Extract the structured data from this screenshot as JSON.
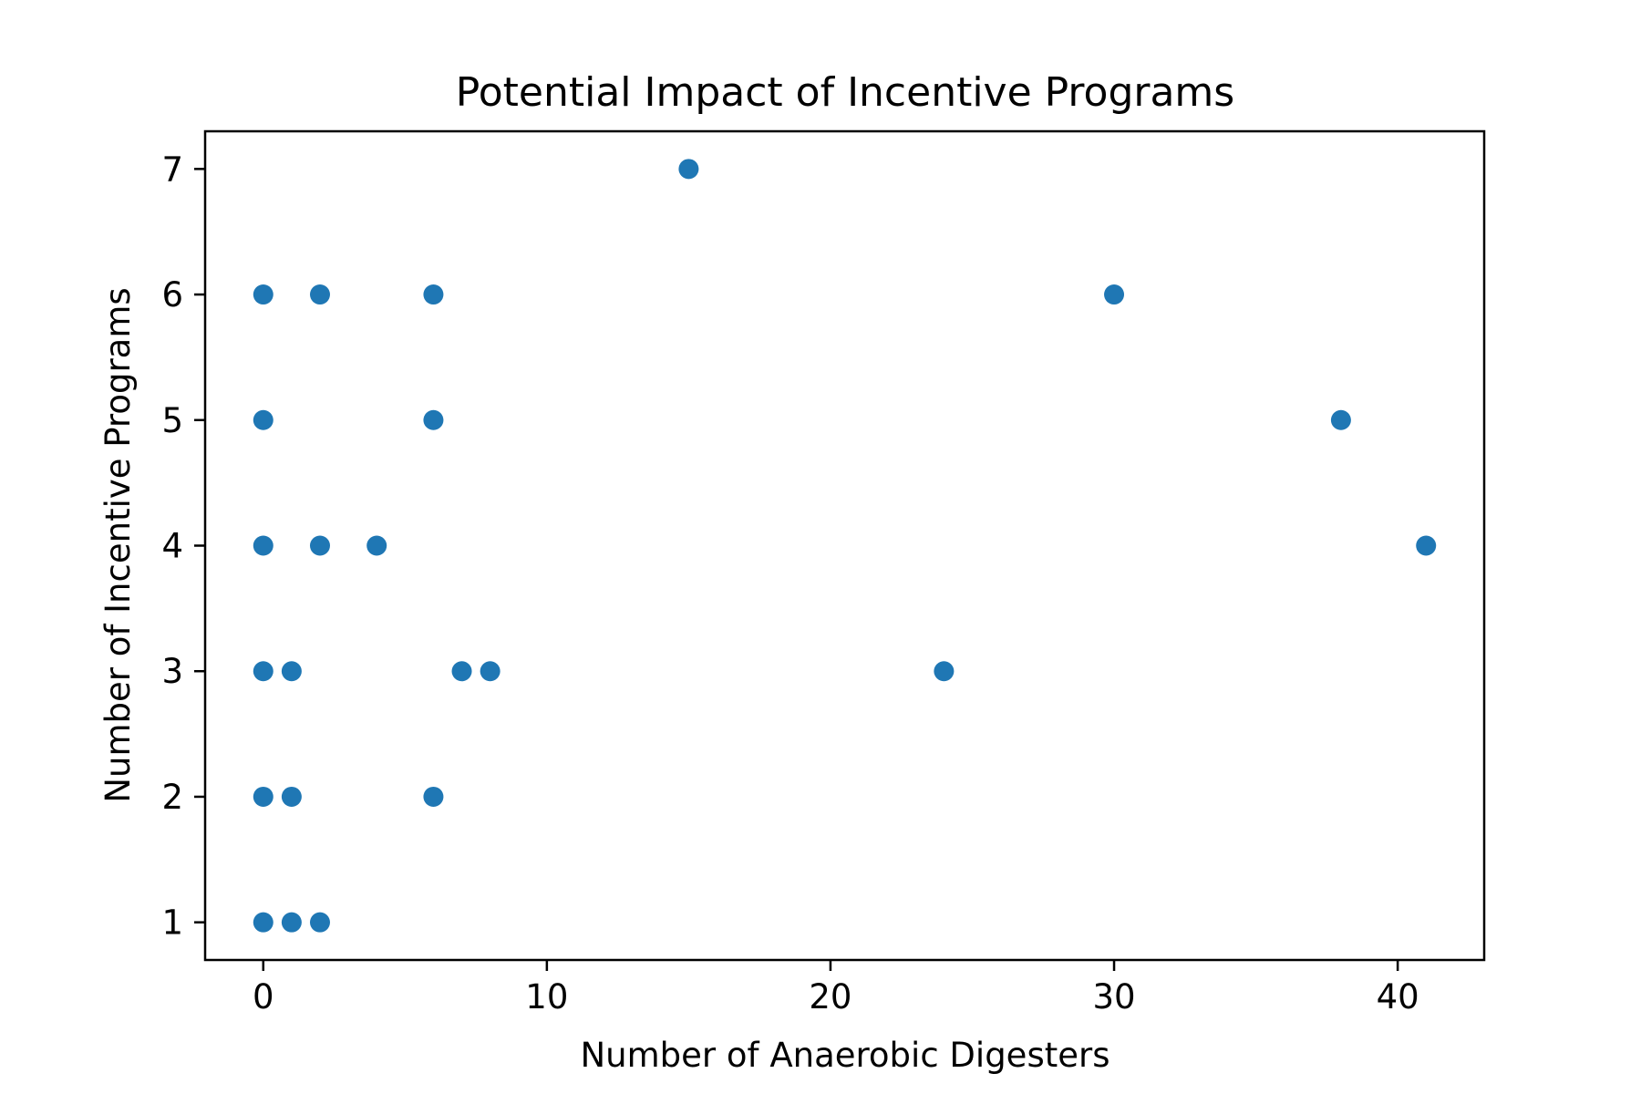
{
  "chart_data": {
    "type": "scatter",
    "title": "Potential Impact of Incentive Programs",
    "xlabel": "Number of Anaerobic Digesters",
    "ylabel": "Number of Incentive Programs",
    "xlim": [
      -2.05,
      43.05
    ],
    "ylim": [
      0.7,
      7.3
    ],
    "xticks": [
      0,
      10,
      20,
      30,
      40
    ],
    "yticks": [
      1,
      2,
      3,
      4,
      5,
      6,
      7
    ],
    "grid": false,
    "marker_color": "#1f77b4",
    "series": [
      {
        "points": [
          {
            "x": 15,
            "y": 7
          },
          {
            "x": 0,
            "y": 6
          },
          {
            "x": 2,
            "y": 6
          },
          {
            "x": 6,
            "y": 6
          },
          {
            "x": 30,
            "y": 6
          },
          {
            "x": 0,
            "y": 5
          },
          {
            "x": 6,
            "y": 5
          },
          {
            "x": 38,
            "y": 5
          },
          {
            "x": 0,
            "y": 4
          },
          {
            "x": 2,
            "y": 4
          },
          {
            "x": 4,
            "y": 4
          },
          {
            "x": 41,
            "y": 4
          },
          {
            "x": 0,
            "y": 3
          },
          {
            "x": 1,
            "y": 3
          },
          {
            "x": 7,
            "y": 3
          },
          {
            "x": 8,
            "y": 3
          },
          {
            "x": 24,
            "y": 3
          },
          {
            "x": 0,
            "y": 2
          },
          {
            "x": 1,
            "y": 2
          },
          {
            "x": 6,
            "y": 2
          },
          {
            "x": 0,
            "y": 1
          },
          {
            "x": 1,
            "y": 1
          },
          {
            "x": 2,
            "y": 1
          }
        ]
      }
    ]
  }
}
